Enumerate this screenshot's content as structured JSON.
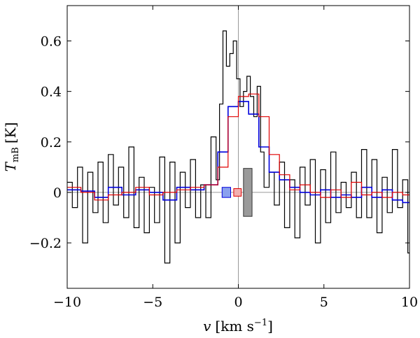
{
  "chart_data": {
    "type": "line",
    "title": "",
    "xlabel": "v",
    "xlabel_unit": "[km s",
    "xlabel_unit_exp": "−1",
    "xlabel_unit_close": "]",
    "ylabel": "T",
    "ylabel_sub": "mB",
    "ylabel_unit": "[K]",
    "xlim": [
      -10,
      10
    ],
    "ylim": [
      -0.38,
      0.74
    ],
    "x_ticks": [
      -10,
      -5,
      0,
      5,
      10
    ],
    "x_tick_labels": [
      "−10",
      "−5",
      "0",
      "5",
      "10"
    ],
    "y_ticks": [
      -0.2,
      0,
      0.2,
      0.4,
      0.6
    ],
    "y_tick_labels": [
      "−0.2",
      "0",
      "0.2",
      "0.4",
      "0.6"
    ],
    "grid": false,
    "reference_lines": {
      "x": 0,
      "y": 0
    },
    "series": [
      {
        "style": "step",
        "color": "#000000",
        "x": [
          -10.0,
          -9.7,
          -9.4,
          -9.1,
          -8.8,
          -8.5,
          -8.2,
          -7.9,
          -7.6,
          -7.3,
          -7.0,
          -6.7,
          -6.4,
          -6.1,
          -5.8,
          -5.5,
          -5.2,
          -4.9,
          -4.6,
          -4.3,
          -4.0,
          -3.7,
          -3.4,
          -3.1,
          -2.8,
          -2.5,
          -2.2,
          -1.9,
          -1.6,
          -1.3,
          -1.1,
          -0.9,
          -0.7,
          -0.5,
          -0.3,
          -0.1,
          0.1,
          0.3,
          0.5,
          0.7,
          0.9,
          1.1,
          1.3,
          1.5,
          1.8,
          2.1,
          2.4,
          2.7,
          3.0,
          3.3,
          3.6,
          3.9,
          4.2,
          4.5,
          4.8,
          5.1,
          5.4,
          5.7,
          6.0,
          6.3,
          6.6,
          6.9,
          7.2,
          7.5,
          7.8,
          8.1,
          8.4,
          8.7,
          9.0,
          9.3,
          9.6,
          9.9
        ],
        "values": [
          0.04,
          -0.06,
          0.1,
          -0.2,
          0.08,
          -0.08,
          0.12,
          -0.12,
          0.15,
          -0.05,
          0.1,
          -0.1,
          0.18,
          -0.14,
          0.06,
          -0.16,
          0.02,
          -0.12,
          0.14,
          -0.28,
          0.12,
          -0.2,
          0.08,
          -0.06,
          0.13,
          -0.1,
          0.03,
          -0.1,
          0.22,
          0.05,
          0.35,
          0.64,
          0.5,
          0.55,
          0.6,
          0.45,
          0.34,
          0.4,
          0.46,
          0.38,
          0.3,
          0.42,
          0.16,
          0.02,
          0.08,
          -0.05,
          0.12,
          -0.14,
          0.05,
          -0.18,
          0.1,
          -0.05,
          0.13,
          -0.2,
          0.09,
          -0.12,
          0.16,
          -0.08,
          0.04,
          -0.06,
          0.08,
          -0.1,
          0.17,
          -0.1,
          0.13,
          -0.16,
          0.06,
          -0.08,
          0.17,
          -0.06,
          0.05,
          -0.24
        ]
      },
      {
        "style": "step",
        "color": "#0000dd",
        "x": [
          -10.0,
          -9.2,
          -8.4,
          -7.6,
          -6.8,
          -6.0,
          -5.2,
          -4.4,
          -3.6,
          -2.8,
          -2.0,
          -1.2,
          -0.6,
          0.0,
          0.6,
          1.2,
          1.8,
          2.4,
          3.0,
          3.6,
          4.2,
          4.8,
          5.4,
          6.0,
          6.6,
          7.2,
          7.8,
          8.4,
          9.0,
          9.6
        ],
        "values": [
          0.01,
          0.005,
          -0.02,
          0.02,
          -0.01,
          0.01,
          0.0,
          -0.03,
          0.02,
          0.01,
          0.03,
          0.16,
          0.34,
          0.36,
          0.31,
          0.18,
          0.08,
          0.05,
          0.02,
          0.0,
          -0.01,
          0.01,
          -0.02,
          -0.01,
          -0.02,
          0.02,
          -0.02,
          0.01,
          -0.03,
          -0.04
        ]
      },
      {
        "style": "step",
        "color": "#e00000",
        "x": [
          -10.0,
          -9.2,
          -8.4,
          -7.6,
          -6.8,
          -6.0,
          -5.2,
          -4.4,
          -3.6,
          -2.8,
          -2.0,
          -1.2,
          -0.6,
          0.0,
          0.6,
          1.2,
          1.8,
          2.4,
          3.0,
          3.6,
          4.2,
          4.8,
          5.4,
          6.0,
          6.6,
          7.2,
          7.8,
          8.4,
          9.0,
          9.6
        ],
        "values": [
          0.02,
          0.0,
          -0.03,
          -0.01,
          0.0,
          0.02,
          -0.01,
          0.0,
          0.01,
          0.02,
          0.03,
          0.1,
          0.3,
          0.38,
          0.39,
          0.3,
          0.15,
          0.07,
          0.01,
          0.03,
          0.0,
          -0.02,
          0.01,
          -0.02,
          0.04,
          -0.01,
          0.0,
          -0.02,
          0.0,
          -0.01
        ]
      }
    ],
    "error_boxes": [
      {
        "x": -0.7,
        "half_width": 0.25,
        "y_low": -0.02,
        "y_high": 0.02,
        "fill": "#8aa0ee",
        "stroke": "#0000dd"
      },
      {
        "x": -0.05,
        "half_width": 0.22,
        "y_low": -0.015,
        "y_high": 0.015,
        "fill": "#f2b0b0",
        "stroke": "#e00000"
      },
      {
        "x": 0.55,
        "half_width": 0.25,
        "y_low": -0.095,
        "y_high": 0.095,
        "fill": "#9a9a9a",
        "stroke": "#333333"
      }
    ]
  }
}
